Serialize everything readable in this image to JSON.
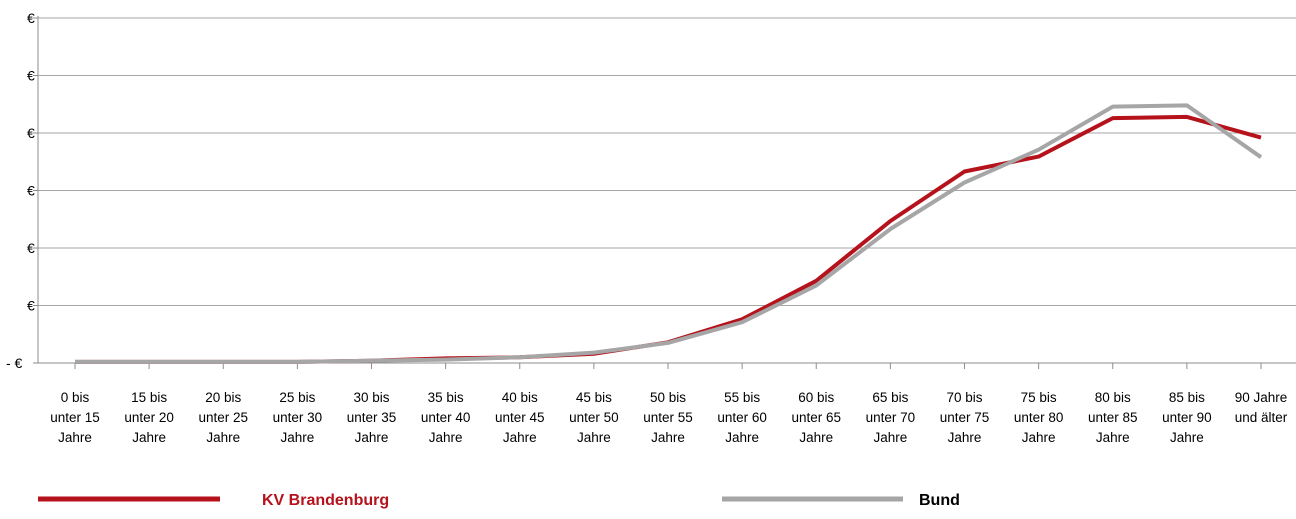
{
  "chart_data": {
    "type": "line",
    "title": "",
    "xlabel": "",
    "ylabel": "",
    "ylim": [
      0,
      6
    ],
    "y_tick_labels": [
      "- €",
      "€",
      "€",
      "€",
      "€",
      "€",
      "€"
    ],
    "categories": [
      [
        "0 bis",
        "unter 15",
        "Jahre"
      ],
      [
        "15 bis",
        "unter 20",
        "Jahre"
      ],
      [
        "20 bis",
        "unter 25",
        "Jahre"
      ],
      [
        "25 bis",
        "unter 30",
        "Jahre"
      ],
      [
        "30 bis",
        "unter 35",
        "Jahre"
      ],
      [
        "35 bis",
        "unter 40",
        "Jahre"
      ],
      [
        "40 bis",
        "unter 45",
        "Jahre"
      ],
      [
        "45 bis",
        "unter 50",
        "Jahre"
      ],
      [
        "50 bis",
        "unter 55",
        "Jahre"
      ],
      [
        "55 bis",
        "unter 60",
        "Jahre"
      ],
      [
        "60 bis",
        "unter 65",
        "Jahre"
      ],
      [
        "65 bis",
        "unter 70",
        "Jahre"
      ],
      [
        "70 bis",
        "unter 75",
        "Jahre"
      ],
      [
        "75 bis",
        "unter 80",
        "Jahre"
      ],
      [
        "80 bis",
        "unter 85",
        "Jahre"
      ],
      [
        "85 bis",
        "unter 90",
        "Jahre"
      ],
      [
        "90 Jahre",
        "und älter"
      ]
    ],
    "series": [
      {
        "name": "KV Brandenburg",
        "color": "#b5121b",
        "values": [
          0.02,
          0.02,
          0.02,
          0.02,
          0.04,
          0.08,
          0.1,
          0.16,
          0.36,
          0.76,
          1.43,
          2.47,
          3.33,
          3.59,
          4.26,
          4.28,
          3.92
        ]
      },
      {
        "name": "Bund",
        "color": "#a6a6a6",
        "values": [
          0.02,
          0.02,
          0.02,
          0.02,
          0.04,
          0.06,
          0.1,
          0.18,
          0.35,
          0.71,
          1.35,
          2.33,
          3.14,
          3.71,
          4.46,
          4.48,
          3.58
        ]
      }
    ],
    "grid": true,
    "legend_position": "bottom"
  }
}
